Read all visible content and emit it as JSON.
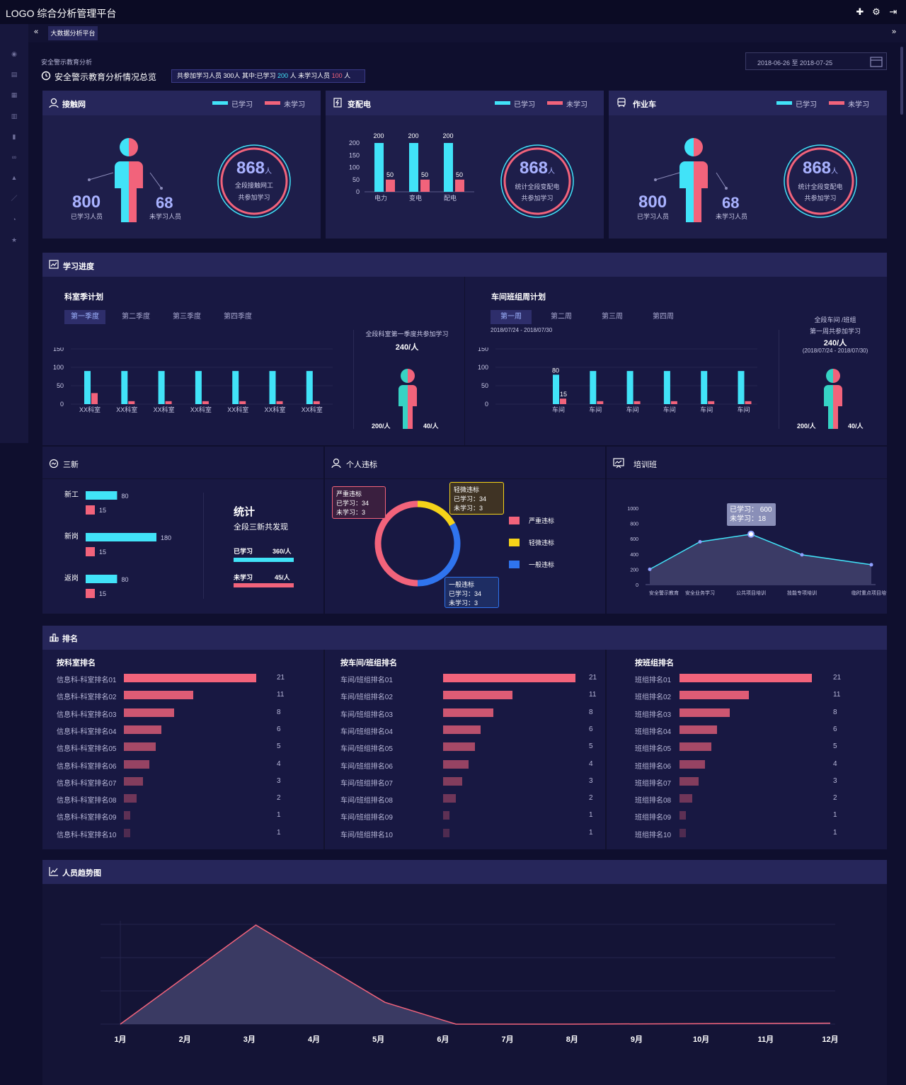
{
  "header": {
    "title": "LOGO  综合分析管理平台"
  },
  "tabs": {
    "active": "大数据分析平台"
  },
  "breadcrumb": "安全警示教育分析",
  "page_title": "安全警示教育分析情况总览",
  "summary": {
    "prefix": "共参加学习人员 300人 其中:已学习 ",
    "learned": "200",
    "mid": " 人 未学习人员 ",
    "unlearned": "100",
    "suffix": " 人"
  },
  "date_range": "2018-06-26 至 2018-07-25",
  "colors": {
    "cyan": "#41e3f8",
    "pink": "#f2637b",
    "yellow": "#f5d319",
    "blue": "#2f74ee",
    "bg": "#0f0f2e"
  },
  "legend": {
    "learned": "已学习",
    "unlearned": "未学习"
  },
  "cards": [
    {
      "title": "接触网",
      "learned": "800",
      "learned_label": "已学习人员",
      "unlearned": "68",
      "unlearned_label": "未学习人员",
      "ring_num": "868",
      "ring_unit": "人",
      "ring_l1": "全段接触网工",
      "ring_l2": "共参加学习"
    },
    {
      "title": "变配电",
      "ring_num": "868",
      "ring_unit": "人",
      "ring_l1": "统计全段变配电",
      "ring_l2": "共参加学习"
    },
    {
      "title": "作业车",
      "learned": "800",
      "learned_label": "已学习人员",
      "unlearned": "68",
      "unlearned_label": "未学习人员",
      "ring_num": "868",
      "ring_unit": "人",
      "ring_l1": "统计全段变配电",
      "ring_l2": "共参加学习"
    }
  ],
  "progress": {
    "title": "学习进度",
    "left": {
      "title": "科室季计划",
      "tabs": [
        "第一季度",
        "第二季度",
        "第三季度",
        "第四季度"
      ],
      "side_l1": "全段科室第一季度共参加学习",
      "side_l2": "240/人",
      "side_a": "200/人",
      "side_b": "40/人"
    },
    "right": {
      "title": "车间班组周计划",
      "tabs": [
        "第一周",
        "第二周",
        "第三周",
        "第四周"
      ],
      "date": "2018/07/24 - 2018/07/30",
      "side_l1": "全段车间 /班组",
      "side_l2": "第一周共参加学习",
      "side_l3": "240/人",
      "side_l4": "(2018/07/24 - 2018/07/30)",
      "side_a": "200/人",
      "side_b": "40/人"
    }
  },
  "sanxin": {
    "title": "三新",
    "rows": [
      {
        "name": "新工",
        "a": "80",
        "b": "15"
      },
      {
        "name": "新岗",
        "a": "180",
        "b": "15"
      },
      {
        "name": "返岗",
        "a": "80",
        "b": "15"
      }
    ],
    "stat_title": "统计",
    "stat_sub": "全段三新共发现",
    "stat_a_label": "已学习",
    "stat_a_val": "360/人",
    "stat_b_label": "未学习",
    "stat_b_val": "45/人"
  },
  "violation": {
    "title": "个人违标",
    "legend": [
      "严重违标",
      "轻微违标",
      "一般违标"
    ],
    "tips": [
      {
        "t": "严重违标",
        "a": "已学习：34",
        "b": "未学习：3"
      },
      {
        "t": "轻微违标",
        "a": "已学习：34",
        "b": "未学习：3"
      },
      {
        "t": "一般违标",
        "a": "已学习：34",
        "b": "未学习：3"
      }
    ]
  },
  "training": {
    "title": "培训班",
    "tip_a": "已学习：  600",
    "tip_b": "未学习：18"
  },
  "ranking": {
    "title": "排名",
    "cols": [
      {
        "title": "按科室排名",
        "labels": [
          "信息科-科室排名01",
          "信息科-科室排名02",
          "信息科-科室排名03",
          "信息科-科室排名04",
          "信息科-科室排名05",
          "信息科-科室排名06",
          "信息科-科室排名07",
          "信息科-科室排名08",
          "信息科-科室排名09",
          "信息科-科室排名10"
        ]
      },
      {
        "title": "按车间/班组排名",
        "labels": [
          "车间/班组排名01",
          "车间/班组排名02",
          "车间/班组排名03",
          "车间/班组排名04",
          "车间/班组排名05",
          "车间/班组排名06",
          "车间/班组排名07",
          "车间/班组排名08",
          "车间/班组排名09",
          "车间/班组排名10"
        ]
      },
      {
        "title": "按班组排名",
        "labels": [
          "班组排名01",
          "班组排名02",
          "班组排名03",
          "班组排名04",
          "班组排名05",
          "班组排名06",
          "班组排名07",
          "班组排名08",
          "班组排名09",
          "班组排名10"
        ]
      }
    ]
  },
  "trend": {
    "title": "人员趋势图"
  },
  "chart_data": [
    {
      "type": "bar",
      "id": "substation",
      "categories": [
        "电力",
        "变电",
        "配电"
      ],
      "series": [
        {
          "name": "已学习",
          "values": [
            200,
            200,
            200
          ]
        },
        {
          "name": "未学习",
          "values": [
            50,
            50,
            50
          ]
        }
      ],
      "yticks": [
        0,
        50,
        100,
        150,
        200
      ],
      "ylim": [
        0,
        200
      ]
    },
    {
      "type": "bar",
      "id": "quarter",
      "categories": [
        "XX科室",
        "XX科室",
        "XX科室",
        "XX科室",
        "XX科室",
        "XX科室",
        "XX科室"
      ],
      "series": [
        {
          "name": "已学习",
          "values": [
            90,
            90,
            90,
            90,
            90,
            90,
            90
          ]
        },
        {
          "name": "未学习",
          "values": [
            30,
            8,
            8,
            8,
            8,
            8,
            8
          ]
        }
      ],
      "yticks": [
        0,
        50,
        100,
        150
      ],
      "ylim": [
        0,
        150
      ]
    },
    {
      "type": "bar",
      "id": "week",
      "categories": [
        "车间",
        "车间",
        "车间",
        "车间",
        "车间",
        "车间",
        "车间"
      ],
      "series": [
        {
          "name": "已学习",
          "values": [
            80,
            90,
            90,
            90,
            90,
            90,
            90
          ]
        },
        {
          "name": "未学习",
          "values": [
            15,
            8,
            8,
            8,
            8,
            8,
            8
          ]
        }
      ],
      "labels": {
        "0": {
          "a": "80",
          "b": "15"
        }
      },
      "yticks": [
        0,
        50,
        100,
        150
      ],
      "ylim": [
        0,
        150
      ]
    },
    {
      "type": "pie",
      "id": "violation",
      "categories": [
        "严重违标",
        "轻微违标",
        "一般违标"
      ],
      "values": [
        50,
        17,
        33
      ]
    },
    {
      "type": "area",
      "id": "training",
      "categories": [
        "安全警示教育",
        "安全业务学习",
        "公共项目培训",
        "技能专项培训",
        "临时重点项目培训"
      ],
      "values": [
        200,
        560,
        660,
        390,
        260
      ],
      "yticks": [
        0,
        200,
        400,
        600,
        800,
        1000
      ],
      "ylim": [
        0,
        1000
      ]
    },
    {
      "type": "bar",
      "id": "rank",
      "values": [
        21,
        11,
        8,
        6,
        5,
        4,
        3,
        2,
        1,
        1
      ]
    },
    {
      "type": "area",
      "id": "trend",
      "categories": [
        "1月",
        "2月",
        "3月",
        "4月",
        "5月",
        "6月",
        "7月",
        "8月",
        "9月",
        "10月",
        "11月",
        "12月"
      ],
      "values": [
        0,
        0,
        0,
        0,
        0,
        0,
        0,
        0,
        0,
        0,
        0,
        0
      ],
      "x": [
        1,
        3.1,
        5.1,
        6.2,
        8,
        12
      ],
      "y": [
        0,
        1000,
        220,
        0,
        0,
        10
      ],
      "ylim": [
        0,
        1150
      ]
    }
  ]
}
